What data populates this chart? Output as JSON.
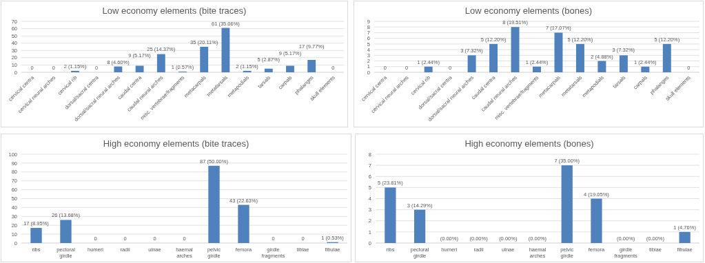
{
  "chart_data": [
    {
      "type": "bar",
      "title": "Low economy elements (bite traces)",
      "categories": [
        "cervical centra",
        "cervical neural arches",
        "cervical rib",
        "dorsal/sacral centra",
        "dorsal/sacral neural arches",
        "caudal centra",
        "caudal neural arches",
        "misc. vertebrae/fragments",
        "metacarpals",
        "metatarsals",
        "metapodials",
        "tarsals",
        "carpals",
        "phalanges",
        "skull elements"
      ],
      "values": [
        0,
        0,
        2,
        0,
        8,
        9,
        25,
        1,
        35,
        61,
        2,
        5,
        9,
        17,
        0
      ],
      "value_labels": [
        "0",
        "0",
        "2 (1.15%)",
        "0",
        "8 (4.60%)",
        "9 (5.17%)",
        "25 (14.37%)",
        "1 (0.57%)",
        "35 (20.11%)",
        "61 (35.06%)",
        "2 (1.15%)",
        "5 (2.87%)",
        "9 (5.17%)",
        "17 (9.77%)",
        "0"
      ],
      "color": "#4f81bd",
      "ylim": [
        0,
        70
      ],
      "yticks": [
        0,
        10,
        20,
        30,
        40,
        50,
        60,
        70
      ],
      "grid": "y"
    },
    {
      "type": "bar",
      "title": "Low economy elements (bones)",
      "categories": [
        "cervical centra",
        "cervical neural arches",
        "cervical rib",
        "dorsal/sacral centra",
        "dorsal/sacral neural arches",
        "caudal centra",
        "caudal neural arches",
        "misc. vertebrae/fragments",
        "metacarpals",
        "metatarsals",
        "metapodials",
        "tarsals",
        "carpals",
        "phalanges",
        "skull elements"
      ],
      "values": [
        0,
        0,
        1,
        0,
        3,
        5,
        8,
        1,
        7,
        5,
        2,
        3,
        1,
        5,
        0
      ],
      "value_labels": [
        "0",
        "0",
        "1 (2.44%)",
        "0",
        "3 (7.32%)",
        "5 (12.20%)",
        "8 (19.51%)",
        "1 (2.44%)",
        "7 (17.07%)",
        "5 (12.20%)",
        "2 (4.88%)",
        "3 (7.32%)",
        "1 (2.44%)",
        "5 (12.20%)",
        "0"
      ],
      "color": "#4f81bd",
      "ylim": [
        0,
        9
      ],
      "yticks": [
        0,
        1,
        2,
        3,
        4,
        5,
        6,
        7,
        8,
        9
      ],
      "grid": "y"
    },
    {
      "type": "bar",
      "title": "High economy elements (bite traces)",
      "categories": [
        "ribs",
        "pectoral girdle",
        "humeri",
        "radii",
        "ulnae",
        "haemal arches",
        "pelvic girdle",
        "femora",
        "girdle fragments",
        "tibiae",
        "fibulae"
      ],
      "values": [
        17,
        26,
        0,
        0,
        0,
        0,
        87,
        43,
        0,
        0,
        1
      ],
      "value_labels": [
        "17 (8.95%)",
        "26 (13.68%)",
        "0",
        "0",
        "0",
        "0",
        "87 (50.00%)",
        "43 (22.63%)",
        "0",
        "0",
        "1 (0.53%)"
      ],
      "color": "#4f81bd",
      "ylim": [
        0,
        100
      ],
      "yticks": [
        0,
        10,
        20,
        30,
        40,
        50,
        60,
        70,
        80,
        90,
        100
      ],
      "grid": "y"
    },
    {
      "type": "bar",
      "title": "High economy elements (bones)",
      "categories": [
        "ribs",
        "pectoral girdle",
        "humeri",
        "radii",
        "ulnae",
        "haemal arches",
        "pelvic girdle",
        "femora",
        "girdle fragments",
        "tibiae",
        "fibulae"
      ],
      "values": [
        5,
        3,
        0,
        0,
        0,
        0,
        7,
        4,
        0,
        0,
        1
      ],
      "value_labels": [
        "5 (23.81%)",
        "3 (14.29%)",
        "(0.00%)",
        "(0.00%)",
        "(0.00%)",
        "(0.00%)",
        "7 (35.00%)",
        "4 (19.05%)",
        "(0.00%)",
        "(0.00%)",
        "1 (4.76%)"
      ],
      "color": "#4f81bd",
      "ylim": [
        0,
        8
      ],
      "yticks": [
        0,
        1,
        2,
        3,
        4,
        5,
        6,
        7,
        8
      ],
      "grid": "y"
    }
  ]
}
